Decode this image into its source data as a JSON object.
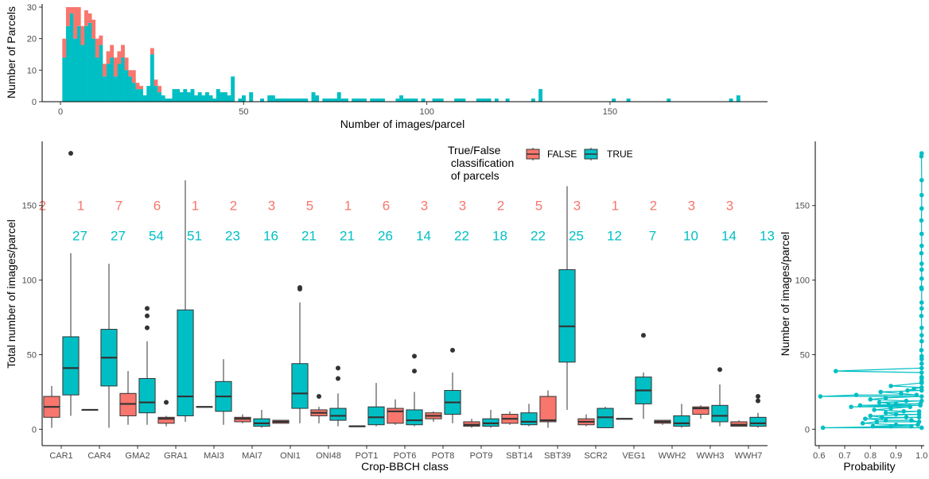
{
  "colors": {
    "false": "#F8766D",
    "true": "#00BFC4",
    "box_line": "#333333",
    "axis": "#000000"
  },
  "legend": {
    "title_lines": [
      "True/False",
      " classification",
      " of parcels"
    ],
    "false_label": "FALSE",
    "true_label": "TRUE"
  },
  "chart_data": [
    {
      "id": "histogram",
      "type": "bar",
      "stacked": true,
      "xlabel": "Number of images/parcel",
      "ylabel": "Number of Parcels",
      "xlim": [
        -5,
        193
      ],
      "ylim": [
        0,
        31
      ],
      "xticks": [
        0,
        50,
        100,
        150
      ],
      "yticks": [
        0,
        10,
        20,
        30
      ],
      "bin_width": 1,
      "true_bins": [
        [
          1,
          14
        ],
        [
          2,
          24
        ],
        [
          3,
          28
        ],
        [
          4,
          20
        ],
        [
          5,
          24
        ],
        [
          6,
          18
        ],
        [
          7,
          24
        ],
        [
          8,
          25
        ],
        [
          9,
          20
        ],
        [
          10,
          14
        ],
        [
          11,
          18
        ],
        [
          12,
          8
        ],
        [
          13,
          12
        ],
        [
          14,
          14
        ],
        [
          15,
          8
        ],
        [
          16,
          12
        ],
        [
          17,
          14
        ],
        [
          18,
          10
        ],
        [
          19,
          8
        ],
        [
          20,
          6
        ],
        [
          21,
          4
        ],
        [
          22,
          4
        ],
        [
          23,
          2
        ],
        [
          24,
          5
        ],
        [
          25,
          15
        ],
        [
          26,
          5
        ],
        [
          27,
          3
        ],
        [
          28,
          2
        ],
        [
          29,
          1
        ],
        [
          30,
          1
        ],
        [
          31,
          4
        ],
        [
          32,
          4
        ],
        [
          33,
          3
        ],
        [
          34,
          4
        ],
        [
          35,
          3
        ],
        [
          36,
          4
        ],
        [
          37,
          2
        ],
        [
          38,
          3
        ],
        [
          39,
          2
        ],
        [
          40,
          3
        ],
        [
          41,
          2
        ],
        [
          42,
          1
        ],
        [
          43,
          4
        ],
        [
          44,
          3
        ],
        [
          45,
          3
        ],
        [
          46,
          2
        ],
        [
          47,
          8
        ],
        [
          49,
          1
        ],
        [
          50,
          2
        ],
        [
          52,
          3
        ],
        [
          55,
          1
        ],
        [
          57,
          2
        ],
        [
          58,
          2
        ],
        [
          59,
          1
        ],
        [
          60,
          1
        ],
        [
          61,
          1
        ],
        [
          62,
          1
        ],
        [
          63,
          1
        ],
        [
          64,
          1
        ],
        [
          65,
          1
        ],
        [
          66,
          1
        ],
        [
          67,
          1
        ],
        [
          69,
          3
        ],
        [
          70,
          2
        ],
        [
          72,
          1
        ],
        [
          73,
          1
        ],
        [
          74,
          1
        ],
        [
          75,
          1
        ],
        [
          76,
          3
        ],
        [
          77,
          1
        ],
        [
          78,
          1
        ],
        [
          80,
          1
        ],
        [
          81,
          1
        ],
        [
          82,
          1
        ],
        [
          83,
          1
        ],
        [
          85,
          1
        ],
        [
          86,
          1
        ],
        [
          87,
          1
        ],
        [
          88,
          1
        ],
        [
          92,
          1
        ],
        [
          93,
          2
        ],
        [
          94,
          1
        ],
        [
          95,
          1
        ],
        [
          96,
          1
        ],
        [
          97,
          1
        ],
        [
          99,
          1
        ],
        [
          102,
          1
        ],
        [
          103,
          1
        ],
        [
          104,
          1
        ],
        [
          108,
          1
        ],
        [
          109,
          1
        ],
        [
          110,
          1
        ],
        [
          114,
          1
        ],
        [
          115,
          1
        ],
        [
          116,
          1
        ],
        [
          117,
          1
        ],
        [
          119,
          1
        ],
        [
          122,
          1
        ],
        [
          129,
          1
        ],
        [
          131,
          4
        ],
        [
          151,
          1
        ],
        [
          155,
          1
        ],
        [
          166,
          1
        ],
        [
          183,
          1
        ],
        [
          185,
          2
        ]
      ],
      "false_bins": [
        [
          1,
          6
        ],
        [
          2,
          6
        ],
        [
          3,
          2
        ],
        [
          4,
          10
        ],
        [
          5,
          6
        ],
        [
          6,
          6
        ],
        [
          7,
          5
        ],
        [
          8,
          3
        ],
        [
          9,
          6
        ],
        [
          10,
          6
        ],
        [
          11,
          3
        ],
        [
          12,
          4
        ],
        [
          13,
          4
        ],
        [
          14,
          4
        ],
        [
          15,
          6
        ],
        [
          16,
          4
        ],
        [
          17,
          4
        ],
        [
          18,
          4
        ],
        [
          19,
          2
        ],
        [
          20,
          4
        ],
        [
          21,
          2
        ],
        [
          22,
          1
        ],
        [
          25,
          2
        ],
        [
          26,
          2
        ],
        [
          27,
          2
        ]
      ]
    },
    {
      "id": "boxplot",
      "type": "box",
      "xlabel": "Crop-BBCH class",
      "ylabel": "Total number of images/parcel",
      "ylim": [
        -11,
        193
      ],
      "yticks": [
        0,
        50,
        100,
        150
      ],
      "categories": [
        "CAR1",
        "CAR4",
        "GMA2",
        "GRA1",
        "MAI3",
        "MAI7",
        "ONI1",
        "ONI48",
        "POT1",
        "POT6",
        "POT8",
        "POT9",
        "SBT14",
        "SBT39",
        "SCR2",
        "VEG1",
        "WWH2",
        "WWH3",
        "WWH7"
      ],
      "false_counts": [
        "2",
        "1",
        "7",
        "6",
        "1",
        "2",
        "3",
        "5",
        "1",
        "6",
        "3",
        "3",
        "2",
        "5",
        "3",
        "1",
        "2",
        "3",
        "3"
      ],
      "true_counts": [
        "27",
        "27",
        "54",
        "51",
        "23",
        "16",
        "21",
        "21",
        "26",
        "14",
        "22",
        "18",
        "22",
        "25",
        "12",
        "7",
        "10",
        "14",
        "13"
      ],
      "count_label_y": {
        "false": 150,
        "true": 130
      },
      "false_boxes": [
        {
          "cat": "CAR1",
          "min": 1,
          "q1": 8,
          "median": 15,
          "q3": 22,
          "max": 29,
          "outliers": []
        },
        {
          "cat": "CAR4",
          "min": 13,
          "q1": 13,
          "median": 13,
          "q3": 13,
          "max": 13,
          "outliers": []
        },
        {
          "cat": "GMA2",
          "min": 3,
          "q1": 9,
          "median": 17,
          "q3": 24,
          "max": 39,
          "outliers": []
        },
        {
          "cat": "GRA1",
          "min": 2,
          "q1": 4,
          "median": 7,
          "q3": 8,
          "max": 9,
          "outliers": [
            18
          ]
        },
        {
          "cat": "MAI3",
          "min": 15,
          "q1": 15,
          "median": 15,
          "q3": 15,
          "max": 15,
          "outliers": []
        },
        {
          "cat": "MAI7",
          "min": 4,
          "q1": 5,
          "median": 7,
          "q3": 8,
          "max": 10,
          "outliers": []
        },
        {
          "cat": "ONI1",
          "min": 4,
          "q1": 4,
          "median": 5,
          "q3": 6,
          "max": 6,
          "outliers": []
        },
        {
          "cat": "ONI48",
          "min": 4,
          "q1": 9,
          "median": 11,
          "q3": 13,
          "max": 15,
          "outliers": [
            22
          ]
        },
        {
          "cat": "POT1",
          "min": 2,
          "q1": 2,
          "median": 2,
          "q3": 2,
          "max": 2,
          "outliers": []
        },
        {
          "cat": "POT6",
          "min": 3,
          "q1": 4,
          "median": 12,
          "q3": 14,
          "max": 20,
          "outliers": []
        },
        {
          "cat": "POT8",
          "min": 5,
          "q1": 7,
          "median": 9,
          "q3": 11,
          "max": 12,
          "outliers": []
        },
        {
          "cat": "POT9",
          "min": 1,
          "q1": 2,
          "median": 3,
          "q3": 5,
          "max": 7,
          "outliers": []
        },
        {
          "cat": "SBT14",
          "min": 3,
          "q1": 4,
          "median": 7,
          "q3": 10,
          "max": 12,
          "outliers": []
        },
        {
          "cat": "SBT39",
          "min": 1,
          "q1": 5,
          "median": 6,
          "q3": 22,
          "max": 26,
          "outliers": []
        },
        {
          "cat": "SCR2",
          "min": 2,
          "q1": 3,
          "median": 5,
          "q3": 7,
          "max": 10,
          "outliers": []
        },
        {
          "cat": "VEG1",
          "min": 7,
          "q1": 7,
          "median": 7,
          "q3": 7,
          "max": 7,
          "outliers": []
        },
        {
          "cat": "WWH2",
          "min": 3,
          "q1": 4,
          "median": 5,
          "q3": 6,
          "max": 6,
          "outliers": []
        },
        {
          "cat": "WWH3",
          "min": 7,
          "q1": 10,
          "median": 14,
          "q3": 15,
          "max": 16,
          "outliers": []
        },
        {
          "cat": "WWH7",
          "min": 2,
          "q1": 2,
          "median": 3,
          "q3": 5,
          "max": 6,
          "outliers": []
        }
      ],
      "true_boxes": [
        {
          "cat": "CAR1",
          "min": 9,
          "q1": 23,
          "median": 41,
          "q3": 62,
          "max": 118,
          "outliers": [
            185
          ]
        },
        {
          "cat": "CAR4",
          "min": 1,
          "q1": 29,
          "median": 48,
          "q3": 67,
          "max": 111,
          "outliers": []
        },
        {
          "cat": "GMA2",
          "min": 3,
          "q1": 11,
          "median": 18,
          "q3": 34,
          "max": 59,
          "outliers": [
            68,
            76,
            81
          ]
        },
        {
          "cat": "GRA1",
          "min": 5,
          "q1": 9,
          "median": 22,
          "q3": 80,
          "max": 167,
          "outliers": []
        },
        {
          "cat": "MAI3",
          "min": 3,
          "q1": 12,
          "median": 22,
          "q3": 32,
          "max": 47,
          "outliers": []
        },
        {
          "cat": "MAI7",
          "min": 1,
          "q1": 2,
          "median": 4,
          "q3": 7,
          "max": 13,
          "outliers": []
        },
        {
          "cat": "ONI1",
          "min": 4,
          "q1": 14,
          "median": 24,
          "q3": 44,
          "max": 85,
          "outliers": [
            94,
            95
          ]
        },
        {
          "cat": "ONI48",
          "min": 2,
          "q1": 6,
          "median": 9,
          "q3": 14,
          "max": 24,
          "outliers": [
            34,
            41
          ]
        },
        {
          "cat": "POT1",
          "min": 2,
          "q1": 3,
          "median": 8,
          "q3": 15,
          "max": 31,
          "outliers": []
        },
        {
          "cat": "POT6",
          "min": 2,
          "q1": 3,
          "median": 6,
          "q3": 13,
          "max": 25,
          "outliers": [
            39,
            49
          ]
        },
        {
          "cat": "POT8",
          "min": 4,
          "q1": 10,
          "median": 18,
          "q3": 26,
          "max": 38,
          "outliers": [
            53
          ]
        },
        {
          "cat": "POT9",
          "min": 1,
          "q1": 2,
          "median": 4,
          "q3": 7,
          "max": 13,
          "outliers": []
        },
        {
          "cat": "SBT14",
          "min": 2,
          "q1": 3,
          "median": 5,
          "q3": 11,
          "max": 17,
          "outliers": []
        },
        {
          "cat": "SBT39",
          "min": 13,
          "q1": 45,
          "median": 69,
          "q3": 107,
          "max": 163,
          "outliers": []
        },
        {
          "cat": "SCR2",
          "min": 1,
          "q1": 1,
          "median": 8,
          "q3": 14,
          "max": 15,
          "outliers": []
        },
        {
          "cat": "VEG1",
          "min": 7,
          "q1": 17,
          "median": 26,
          "q3": 35,
          "max": 38,
          "outliers": [
            63
          ]
        },
        {
          "cat": "WWH2",
          "min": 1,
          "q1": 2,
          "median": 4,
          "q3": 9,
          "max": 17,
          "outliers": []
        },
        {
          "cat": "WWH3",
          "min": 2,
          "q1": 5,
          "median": 9,
          "q3": 16,
          "max": 30,
          "outliers": [
            40
          ]
        },
        {
          "cat": "WWH7",
          "min": 1,
          "q1": 2,
          "median": 4,
          "q3": 8,
          "max": 11,
          "outliers": [
            19,
            22
          ]
        }
      ]
    },
    {
      "id": "probability",
      "type": "line",
      "xlabel": "Probability",
      "ylabel": "Number of images/parcel",
      "xlim": [
        0.585,
        1.01
      ],
      "ylim": [
        -11,
        193
      ],
      "xticks": [
        0.6,
        0.7,
        0.8,
        0.9,
        1.0
      ],
      "xtick_labels": [
        "0.6",
        "0.7",
        "0.8",
        "0.9",
        "1.0"
      ],
      "yticks": [
        0,
        50,
        100,
        150
      ],
      "points": [
        [
          1.0,
          185
        ],
        [
          0.999,
          183
        ],
        [
          1.0,
          167
        ],
        [
          1.0,
          157
        ],
        [
          1.0,
          148
        ],
        [
          0.999,
          140
        ],
        [
          1.0,
          131
        ],
        [
          1.0,
          123
        ],
        [
          0.999,
          118
        ],
        [
          1.0,
          111
        ],
        [
          1.0,
          107
        ],
        [
          1.0,
          101
        ],
        [
          0.999,
          95
        ],
        [
          1.0,
          94
        ],
        [
          1.0,
          85
        ],
        [
          1.0,
          81
        ],
        [
          0.999,
          76
        ],
        [
          1.0,
          68
        ],
        [
          1.0,
          63
        ],
        [
          1.0,
          59
        ],
        [
          0.999,
          53
        ],
        [
          1.0,
          49
        ],
        [
          1.0,
          47
        ],
        [
          1.0,
          44
        ],
        [
          1.0,
          41
        ],
        [
          0.665,
          39
        ],
        [
          1.0,
          38
        ],
        [
          1.0,
          35
        ],
        [
          1.0,
          34
        ],
        [
          1.0,
          32
        ],
        [
          1.0,
          31
        ],
        [
          0.88,
          29
        ],
        [
          1.0,
          28
        ],
        [
          0.97,
          27
        ],
        [
          0.945,
          26
        ],
        [
          1.0,
          26
        ],
        [
          0.84,
          25
        ],
        [
          0.92,
          24
        ],
        [
          0.98,
          23
        ],
        [
          0.605,
          22
        ],
        [
          0.745,
          23
        ],
        [
          1.0,
          22
        ],
        [
          0.86,
          21
        ],
        [
          0.8,
          20
        ],
        [
          0.94,
          19
        ],
        [
          1.0,
          19
        ],
        [
          0.835,
          18
        ],
        [
          0.9,
          17
        ],
        [
          0.995,
          17
        ],
        [
          0.76,
          16
        ],
        [
          0.87,
          16
        ],
        [
          0.995,
          16
        ],
        [
          0.725,
          15
        ],
        [
          0.955,
          15
        ],
        [
          0.88,
          14
        ],
        [
          0.815,
          13
        ],
        [
          0.93,
          12
        ],
        [
          0.99,
          12
        ],
        [
          0.86,
          11
        ],
        [
          0.9,
          10
        ],
        [
          0.99,
          10
        ],
        [
          0.8,
          9
        ],
        [
          0.845,
          8
        ],
        [
          0.94,
          8
        ],
        [
          0.99,
          8
        ],
        [
          0.78,
          7
        ],
        [
          0.86,
          6
        ],
        [
          0.96,
          6
        ],
        [
          0.99,
          5
        ],
        [
          0.825,
          5
        ],
        [
          0.77,
          4
        ],
        [
          0.9,
          3
        ],
        [
          0.985,
          3
        ],
        [
          0.81,
          2
        ],
        [
          0.88,
          2
        ],
        [
          0.96,
          2
        ],
        [
          0.615,
          1
        ],
        [
          1.0,
          1
        ]
      ]
    }
  ]
}
